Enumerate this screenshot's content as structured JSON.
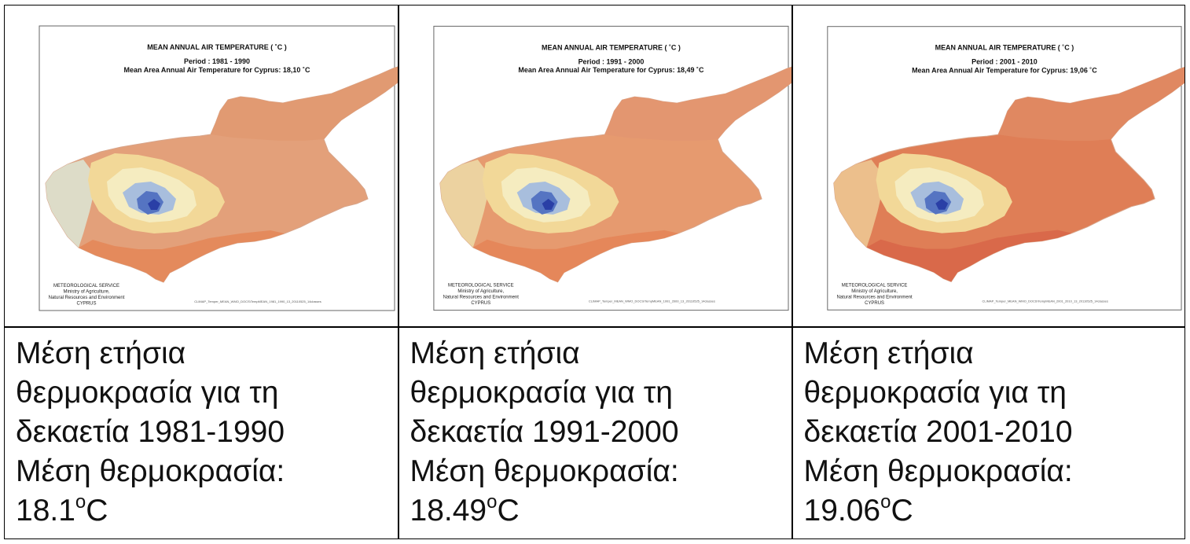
{
  "panels": [
    {
      "map": {
        "title": "MEAN ANNUAL AIR TEMPERATURE ( ˚C )",
        "period": "Period :  1981 - 1990",
        "mean_line": "Mean Area Annual  Air Temperature for Cyprus: 18,10 ˚C",
        "agency_lines": [
          "METEOROLOGICAL SERVICE",
          "Ministry of Agriculture,",
          "Natural Resources and Environment",
          "CYPRUS"
        ],
        "file_ref": "CLIMAP_Temper_MEAN_WMO_DOCS\\TempMEAN_1981_1990_13_20110525_14classes"
      },
      "caption": {
        "line1": "Μέση ετήσια",
        "line2": "θερμοκρασία για τη",
        "line3": "δεκαετία 1981-1990",
        "line4": "Μέση θερμοκρασία:",
        "value": "18.1",
        "unit_o": "o",
        "unit_c": "C"
      },
      "colors": {
        "lowland": "#e3a07a",
        "coast": "#e48a5c",
        "north": "#e19a72",
        "west": "#dddcc8"
      }
    },
    {
      "map": {
        "title": "MEAN ANNUAL AIR TEMPERATURE ( ˚C )",
        "period": "Period :  1991 - 2000",
        "mean_line": "Mean Area Annual  Air Temperature for Cyprus: 18,49 ˚C",
        "agency_lines": [
          "METEOROLOGICAL SERVICE",
          "Ministry of Agriculture,",
          "Natural Resources and Environment",
          "CYPRUS"
        ],
        "file_ref": "CLIMAP_Temper_MEAN_WMO_DOCS\\TempMEAN_1991_2000_13_20110525_14classes"
      },
      "caption": {
        "line1": "Μέση ετήσια",
        "line2": "θερμοκρασία για τη",
        "line3": "δεκαετία 1991-2000",
        "line4": "Μέση θερμοκρασία:",
        "value": "18.49",
        "unit_o": "o",
        "unit_c": "C"
      },
      "colors": {
        "lowland": "#e69a6f",
        "coast": "#e5875a",
        "north": "#e39670",
        "west": "#ecd2a0"
      }
    },
    {
      "map": {
        "title": "MEAN ANNUAL AIR TEMPERATURE ( ˚C )",
        "period": "Period :  2001 - 2010",
        "mean_line": "Mean  Area Annual  Air Temperature for Cyprus: 19,06 ˚C",
        "agency_lines": [
          "METEOROLOGICAL SERVICE",
          "Ministry of Agriculture,",
          "Natural Resources and Environment",
          "CYPRUS"
        ],
        "file_ref": "CLIMAP_Temper_MEAN_WMO_DOCS\\TempMEAN_2001_2010_13_20110525_14classes"
      },
      "caption": {
        "line1": "Μέση ετήσια",
        "line2": "θερμοκρασία για τη",
        "line3": "δεκαετία 2001-2010",
        "line4": "Μέση θερμοκρασία:",
        "value": "19.06",
        "unit_o": "o",
        "unit_c": "C"
      },
      "colors": {
        "lowland": "#df7e56",
        "coast": "#d9694a",
        "north": "#e08861",
        "west": "#ecbf8c"
      }
    }
  ]
}
